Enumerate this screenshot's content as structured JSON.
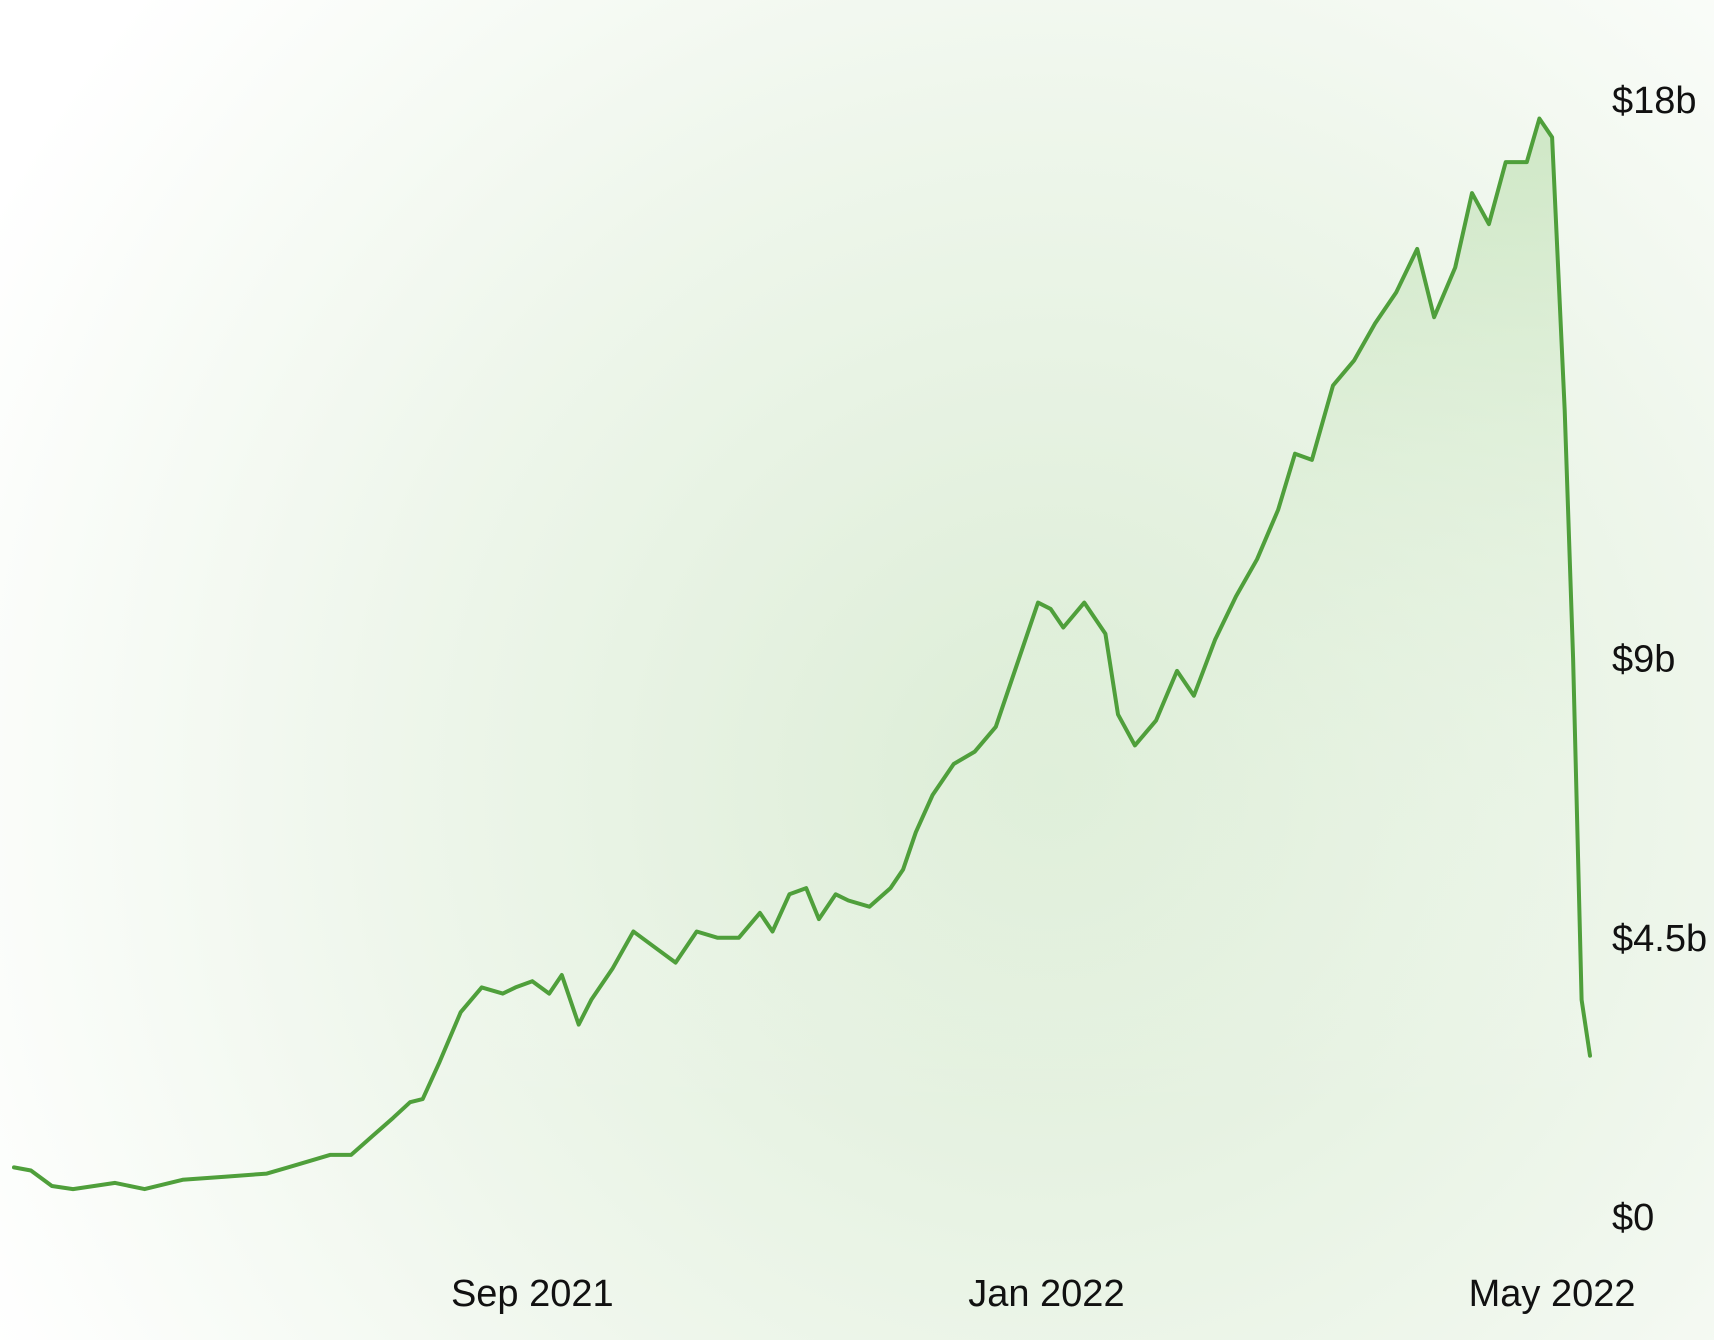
{
  "chart_data": {
    "type": "area",
    "title": "",
    "xlabel": "",
    "ylabel": "",
    "x_range": [
      "2021-05-01",
      "2022-05-10"
    ],
    "ylim": [
      0,
      18
    ],
    "y_unit": "billions USD",
    "grid": false,
    "legend": "none",
    "x_ticks": [
      {
        "date": "2021-09-01",
        "label": "Sep 2021"
      },
      {
        "date": "2022-01-01",
        "label": "Jan 2022"
      },
      {
        "date": "2022-05-01",
        "label": "May 2022"
      }
    ],
    "y_ticks": [
      {
        "value": 18,
        "label": "$18b"
      },
      {
        "value": 9,
        "label": "$9b"
      },
      {
        "value": 4.5,
        "label": "$4.5b"
      },
      {
        "value": 0,
        "label": "$0"
      }
    ],
    "series": [
      {
        "x": [
          "2021-05-01",
          "2021-05-05",
          "2021-05-10",
          "2021-05-15",
          "2021-05-20",
          "2021-05-25",
          "2021-06-01",
          "2021-06-10",
          "2021-06-20",
          "2021-06-30",
          "2021-07-05",
          "2021-07-10",
          "2021-07-15",
          "2021-07-20",
          "2021-07-25",
          "2021-07-30",
          "2021-08-03",
          "2021-08-06",
          "2021-08-10",
          "2021-08-15",
          "2021-08-20",
          "2021-08-25",
          "2021-08-28",
          "2021-09-01",
          "2021-09-05",
          "2021-09-08",
          "2021-09-12",
          "2021-09-15",
          "2021-09-20",
          "2021-09-25",
          "2021-10-01",
          "2021-10-05",
          "2021-10-10",
          "2021-10-15",
          "2021-10-20",
          "2021-10-25",
          "2021-10-28",
          "2021-11-01",
          "2021-11-05",
          "2021-11-08",
          "2021-11-12",
          "2021-11-15",
          "2021-11-20",
          "2021-11-25",
          "2021-11-28",
          "2021-12-01",
          "2021-12-05",
          "2021-12-10",
          "2021-12-15",
          "2021-12-20",
          "2021-12-25",
          "2021-12-30",
          "2022-01-02",
          "2022-01-05",
          "2022-01-10",
          "2022-01-15",
          "2022-01-18",
          "2022-01-22",
          "2022-01-27",
          "2022-02-01",
          "2022-02-05",
          "2022-02-10",
          "2022-02-15",
          "2022-02-20",
          "2022-02-25",
          "2022-03-01",
          "2022-03-05",
          "2022-03-10",
          "2022-03-15",
          "2022-03-20",
          "2022-03-25",
          "2022-03-30",
          "2022-04-03",
          "2022-04-08",
          "2022-04-12",
          "2022-04-16",
          "2022-04-20",
          "2022-04-25",
          "2022-04-28",
          "2022-05-01",
          "2022-05-04",
          "2022-05-06",
          "2022-05-08",
          "2022-05-10"
        ],
        "values": [
          0.8,
          0.75,
          0.5,
          0.45,
          0.5,
          0.55,
          0.45,
          0.6,
          0.65,
          0.7,
          0.8,
          0.9,
          1.0,
          1.0,
          1.3,
          1.6,
          1.85,
          1.9,
          2.5,
          3.3,
          3.7,
          3.6,
          3.7,
          3.8,
          3.6,
          3.9,
          3.1,
          3.5,
          4.0,
          4.6,
          4.3,
          4.1,
          4.6,
          4.5,
          4.5,
          4.9,
          4.6,
          5.2,
          5.3,
          4.8,
          5.2,
          5.1,
          5.0,
          5.3,
          5.6,
          6.2,
          6.8,
          7.3,
          7.5,
          7.9,
          8.9,
          9.9,
          9.8,
          9.5,
          9.9,
          9.4,
          8.1,
          7.6,
          8.0,
          8.8,
          8.4,
          9.3,
          10.0,
          10.6,
          11.4,
          12.3,
          12.2,
          13.4,
          13.8,
          14.4,
          14.9,
          15.6,
          14.5,
          15.3,
          16.5,
          16.0,
          17.0,
          17.0,
          17.7,
          17.4,
          13.0,
          9.0,
          3.5,
          2.6
        ]
      }
    ]
  }
}
